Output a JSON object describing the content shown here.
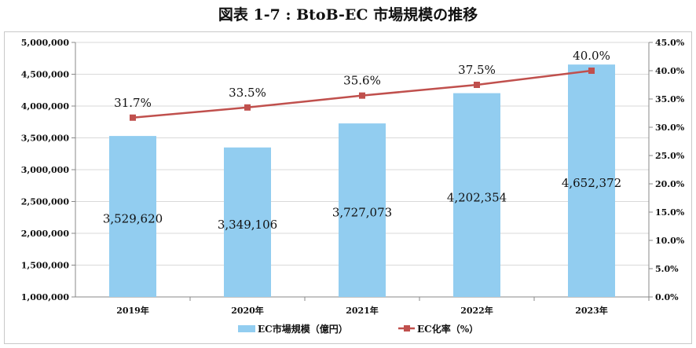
{
  "title": "図表 1-7 : BtoB-EC 市場規模の推移",
  "chart_data": {
    "type": "bar+line",
    "title": "図表 1-7 : BtoB-EC 市場規模の推移",
    "categories": [
      "2019年",
      "2020年",
      "2021年",
      "2022年",
      "2023年"
    ],
    "series": [
      {
        "name": "EC市場規模（億円）",
        "type": "bar",
        "axis": "left",
        "color": "#92cdf0",
        "values": [
          3529620,
          3349106,
          3727073,
          4202354,
          4652372
        ],
        "labels": [
          "3,529,620",
          "3,349,106",
          "3,727,073",
          "4,202,354",
          "4,652,372"
        ]
      },
      {
        "name": "EC化率（%）",
        "type": "line",
        "axis": "right",
        "color": "#c0504d",
        "values": [
          31.7,
          33.5,
          35.6,
          37.5,
          40.0
        ],
        "labels": [
          "31.7%",
          "33.5%",
          "35.6%",
          "37.5%",
          "40.0%"
        ]
      }
    ],
    "yleft": {
      "lim": [
        1000000,
        5000000
      ],
      "ticks": [
        "1,000,000",
        "1,500,000",
        "2,000,000",
        "2,500,000",
        "3,000,000",
        "3,500,000",
        "4,000,000",
        "4,500,000",
        "5,000,000"
      ]
    },
    "yright": {
      "lim": [
        0,
        45
      ],
      "ticks": [
        "0.0%",
        "5.0%",
        "10.0%",
        "15.0%",
        "20.0%",
        "25.0%",
        "30.0%",
        "35.0%",
        "40.0%",
        "45.0%"
      ]
    },
    "grid": "horizontal",
    "legend": "bottom"
  }
}
